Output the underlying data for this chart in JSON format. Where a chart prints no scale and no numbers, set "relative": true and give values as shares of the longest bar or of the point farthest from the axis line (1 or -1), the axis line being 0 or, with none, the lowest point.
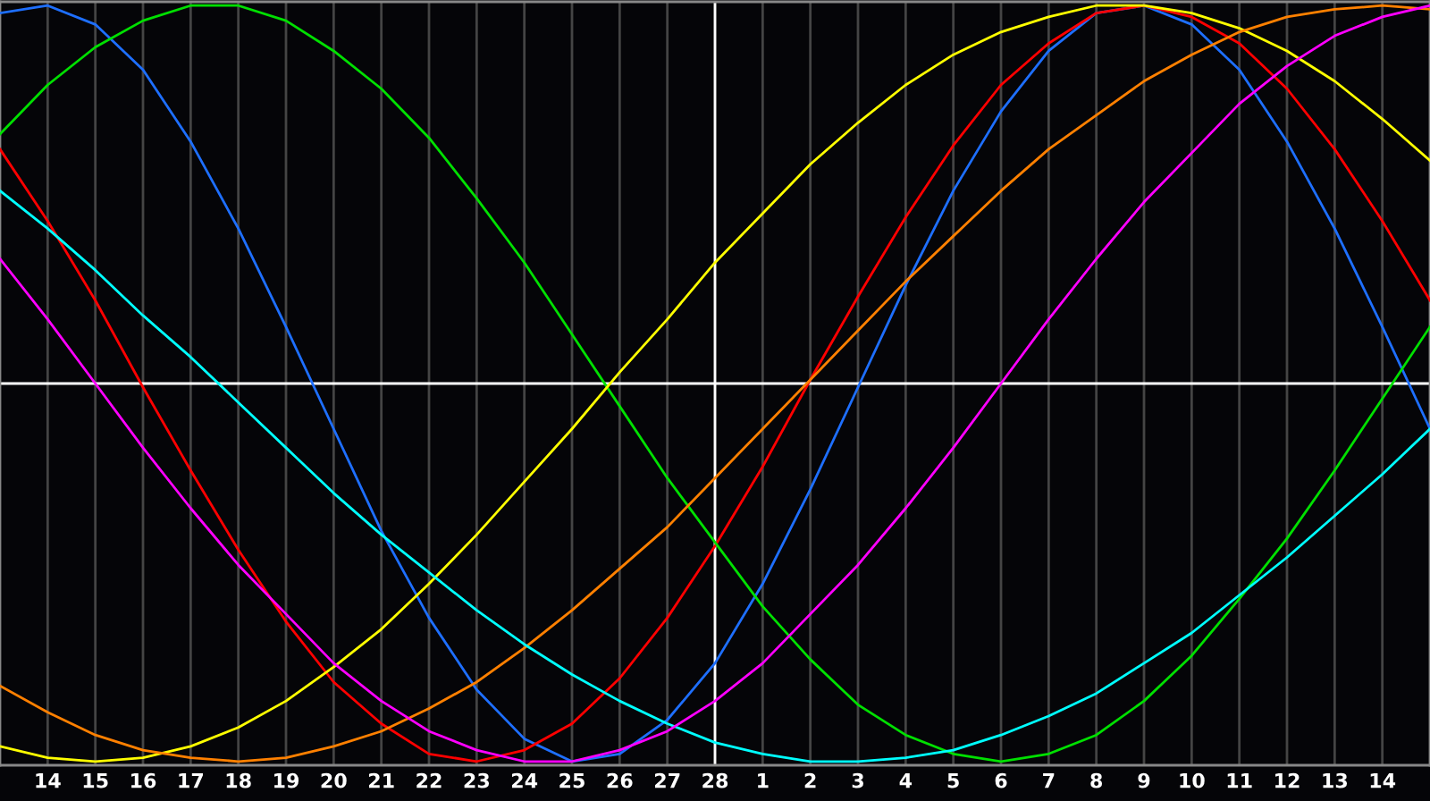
{
  "chart_data": {
    "type": "line",
    "relative": true,
    "grid": "x",
    "marker": "none",
    "line_style": "solid",
    "categories": [
      null,
      "14",
      "15",
      "16",
      "17",
      "18",
      "19",
      "20",
      "21",
      "22",
      "23",
      "24",
      "25",
      "26",
      "27",
      "28",
      "1",
      "2",
      "3",
      "4",
      "5",
      "6",
      "7",
      "8",
      "9",
      "10",
      "11",
      "12",
      "13",
      "14",
      null
    ],
    "ref_lines": [
      {
        "axis": "x",
        "value": "28",
        "color": "#ffffff"
      }
    ],
    "series": [
      {
        "color": "#1e6fff",
        "values": [
          0.98,
          1.0,
          0.95,
          0.83,
          0.64,
          0.41,
          0.15,
          -0.12,
          -0.39,
          -0.62,
          -0.81,
          -0.94,
          -1.0,
          -0.98,
          -0.89,
          -0.74,
          -0.53,
          -0.28,
          -0.01,
          0.26,
          0.51,
          0.72,
          0.88,
          0.98,
          1.0,
          0.95,
          0.83,
          0.64,
          0.41,
          0.15,
          -0.12
        ]
      },
      {
        "color": "#ff0000",
        "values": [
          0.62,
          0.43,
          0.22,
          -0.01,
          -0.23,
          -0.44,
          -0.63,
          -0.79,
          -0.9,
          -0.98,
          -1.0,
          -0.97,
          -0.9,
          -0.78,
          -0.62,
          -0.43,
          -0.22,
          0.01,
          0.23,
          0.44,
          0.63,
          0.79,
          0.9,
          0.98,
          1.0,
          0.97,
          0.9,
          0.78,
          0.62,
          0.43,
          0.22
        ]
      },
      {
        "color": "#00e000",
        "values": [
          0.66,
          0.79,
          0.89,
          0.96,
          1.0,
          1.0,
          0.96,
          0.88,
          0.78,
          0.65,
          0.49,
          0.32,
          0.13,
          -0.06,
          -0.25,
          -0.42,
          -0.59,
          -0.73,
          -0.85,
          -0.93,
          -0.98,
          -1.0,
          -0.98,
          -0.93,
          -0.84,
          -0.72,
          -0.57,
          -0.41,
          -0.23,
          -0.04,
          0.15
        ]
      },
      {
        "color": "#ffff00",
        "values": [
          -0.96,
          -0.99,
          -1.0,
          -0.99,
          -0.96,
          -0.91,
          -0.84,
          -0.75,
          -0.65,
          -0.53,
          -0.4,
          -0.26,
          -0.12,
          0.03,
          0.17,
          0.32,
          0.45,
          0.58,
          0.69,
          0.79,
          0.87,
          0.93,
          0.97,
          1.0,
          1.0,
          0.98,
          0.94,
          0.88,
          0.8,
          0.7,
          0.59
        ]
      },
      {
        "color": "#ff8000",
        "values": [
          -0.8,
          -0.87,
          -0.93,
          -0.97,
          -0.99,
          -1.0,
          -0.99,
          -0.96,
          -0.92,
          -0.86,
          -0.79,
          -0.7,
          -0.6,
          -0.49,
          -0.38,
          -0.25,
          -0.12,
          0.01,
          0.14,
          0.27,
          0.39,
          0.51,
          0.62,
          0.71,
          0.8,
          0.87,
          0.93,
          0.97,
          0.99,
          1.0,
          0.99
        ]
      },
      {
        "color": "#00ffff",
        "values": [
          0.51,
          0.41,
          0.3,
          0.18,
          0.07,
          -0.05,
          -0.17,
          -0.29,
          -0.4,
          -0.5,
          -0.6,
          -0.69,
          -0.77,
          -0.84,
          -0.9,
          -0.95,
          -0.98,
          -1.0,
          -1.0,
          -0.99,
          -0.97,
          -0.93,
          -0.88,
          -0.82,
          -0.74,
          -0.66,
          -0.56,
          -0.46,
          -0.35,
          -0.24,
          -0.12
        ]
      },
      {
        "color": "#ff00ff",
        "values": [
          0.33,
          0.17,
          0.0,
          -0.17,
          -0.33,
          -0.48,
          -0.61,
          -0.74,
          -0.84,
          -0.92,
          -0.97,
          -1.0,
          -1.0,
          -0.97,
          -0.92,
          -0.84,
          -0.74,
          -0.61,
          -0.48,
          -0.33,
          -0.17,
          0.0,
          0.17,
          0.33,
          0.48,
          0.61,
          0.74,
          0.84,
          0.92,
          0.97,
          1.0
        ]
      }
    ]
  }
}
